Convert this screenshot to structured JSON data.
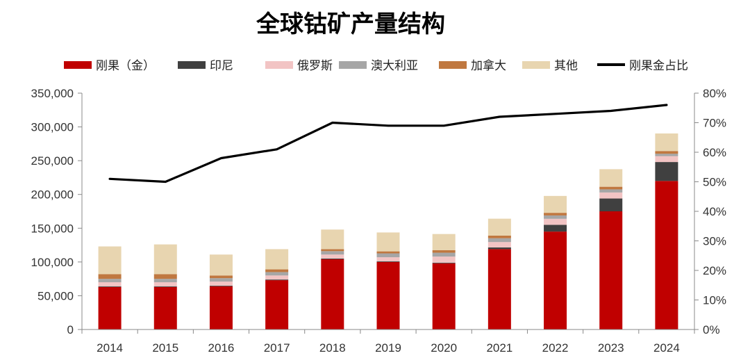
{
  "chart_data": {
    "type": "bar",
    "stacked": true,
    "title": "全球钴矿产量结构",
    "xlabel": "",
    "ylabel": "",
    "y2label": "",
    "legend_position": "top",
    "grid": false,
    "categories": [
      "2014",
      "2015",
      "2016",
      "2017",
      "2018",
      "2019",
      "2020",
      "2021",
      "2022",
      "2023",
      "2024"
    ],
    "ylim": [
      0,
      350000
    ],
    "y_ticks": [
      "0",
      "50,000",
      "100,000",
      "150,000",
      "200,000",
      "250,000",
      "300,000",
      "350,000"
    ],
    "y2lim": [
      0,
      80
    ],
    "y2_ticks": [
      "0%",
      "10%",
      "20%",
      "30%",
      "40%",
      "50%",
      "60%",
      "70%",
      "80%"
    ],
    "series": [
      {
        "name": "刚果（金）",
        "color": "#C00000",
        "values": [
          63000,
          63000,
          64000,
          73000,
          104000,
          100000,
          98000,
          119000,
          145000,
          175000,
          220000
        ]
      },
      {
        "name": "印尼",
        "color": "#404040",
        "values": [
          1000,
          1000,
          1000,
          1000,
          1000,
          1000,
          1000,
          2500,
          10000,
          19000,
          28000
        ]
      },
      {
        "name": "俄罗斯",
        "color": "#F2C4C4",
        "values": [
          6000,
          6000,
          6000,
          6000,
          6000,
          6000,
          9000,
          8000,
          8900,
          8900,
          8700
        ]
      },
      {
        "name": "澳大利亚",
        "color": "#A6A6A6",
        "values": [
          5000,
          5000,
          5000,
          5000,
          5000,
          5700,
          5700,
          5600,
          5000,
          4600,
          3600
        ]
      },
      {
        "name": "加拿大",
        "color": "#C07840",
        "values": [
          7000,
          7000,
          4000,
          4000,
          3000,
          3000,
          3700,
          4000,
          3900,
          3900,
          4000
        ]
      },
      {
        "name": "其他",
        "color": "#E8D5B0",
        "values": [
          41000,
          44000,
          31000,
          30000,
          29000,
          28000,
          24000,
          25000,
          25000,
          26000,
          26000
        ]
      }
    ],
    "line_series": {
      "name": "刚果金占比",
      "color": "#000000",
      "axis": "right",
      "values": [
        51,
        50,
        58,
        61,
        70,
        69,
        69,
        72,
        73,
        74,
        76
      ]
    }
  }
}
